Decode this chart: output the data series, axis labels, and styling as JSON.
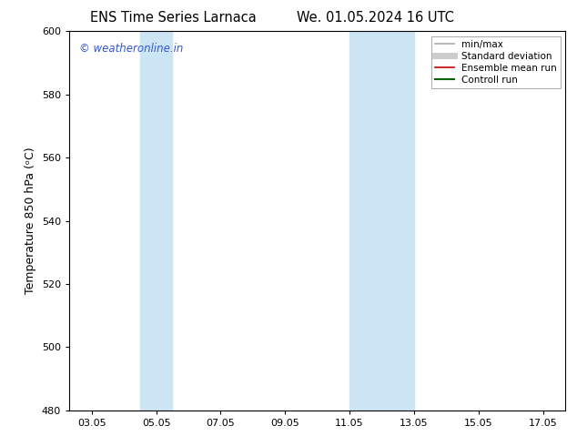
{
  "title_left": "ENS Time Series Larnaca",
  "title_right": "We. 01.05.2024 16 UTC",
  "ylabel": "Temperature 850 hPa (ᵒC)",
  "ylim": [
    480,
    600
  ],
  "yticks": [
    480,
    500,
    520,
    540,
    560,
    580,
    600
  ],
  "xtick_labels": [
    "03.05",
    "05.05",
    "07.05",
    "09.05",
    "11.05",
    "13.05",
    "15.05",
    "17.05"
  ],
  "xtick_positions": [
    3,
    5,
    7,
    9,
    11,
    13,
    15,
    17
  ],
  "xlim": [
    2.3,
    17.7
  ],
  "shaded_bands": [
    {
      "x_start": 4.5,
      "x_end": 5.5,
      "color": "#cce5f5"
    },
    {
      "x_start": 11.0,
      "x_end": 13.0,
      "color": "#cce5f5"
    }
  ],
  "watermark": "© weatheronline.in",
  "watermark_color": "#3355cc",
  "legend_items": [
    {
      "label": "min/max",
      "color": "#aaaaaa",
      "lw": 1.2,
      "style": "line"
    },
    {
      "label": "Standard deviation",
      "color": "#cccccc",
      "lw": 5,
      "style": "line"
    },
    {
      "label": "Ensemble mean run",
      "color": "#cc0000",
      "lw": 1.2,
      "style": "line"
    },
    {
      "label": "Controll run",
      "color": "#006600",
      "lw": 1.5,
      "style": "line"
    }
  ],
  "bg_color": "#ffffff",
  "title_fontsize": 10.5,
  "axis_label_fontsize": 9,
  "tick_fontsize": 8,
  "watermark_fontsize": 8.5,
  "legend_fontsize": 7.5
}
